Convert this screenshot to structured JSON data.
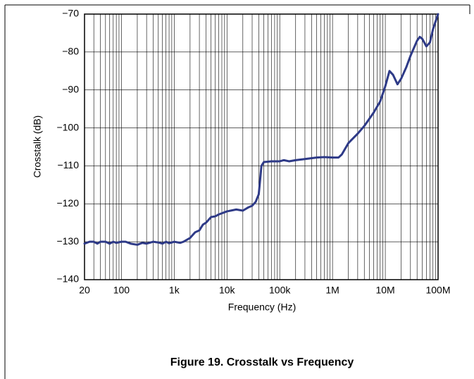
{
  "chart_data": {
    "type": "line",
    "title": "Figure 19. Crosstalk vs Frequency",
    "xlabel": "Frequency (Hz)",
    "ylabel": "Crosstalk (dB)",
    "xscale": "log",
    "grid": true,
    "xlim": [
      20,
      100000000
    ],
    "ylim": [
      -140,
      -70
    ],
    "xticks": [
      20,
      100,
      {
        "value": 1000,
        "label": "1k"
      },
      {
        "value": 10000,
        "label": "10k"
      },
      {
        "value": 100000,
        "label": "100k"
      },
      {
        "value": 1000000,
        "label": "1M"
      },
      {
        "value": 10000000,
        "label": "10M"
      },
      {
        "value": 100000000,
        "label": "100M"
      }
    ],
    "yticks": [
      {
        "value": -140,
        "label": "−140"
      },
      {
        "value": -130,
        "label": "−130"
      },
      {
        "value": -120,
        "label": "−120"
      },
      {
        "value": -110,
        "label": "−110"
      },
      {
        "value": -100,
        "label": "−100"
      },
      {
        "value": -90,
        "label": "−90"
      },
      {
        "value": -80,
        "label": "−80"
      },
      {
        "value": -70,
        "label": "−70"
      }
    ],
    "series": [
      {
        "color": "#2e3a87",
        "x": [
          20,
          25,
          30,
          35,
          40,
          50,
          60,
          70,
          80,
          100,
          120,
          150,
          200,
          250,
          300,
          400,
          500,
          600,
          700,
          800,
          1000,
          1300,
          1500,
          2000,
          2500,
          3000,
          3500,
          4000,
          5000,
          6000,
          7000,
          8000,
          10000,
          15000,
          20000,
          25000,
          30000,
          35000,
          40000,
          45000,
          50000,
          70000,
          100000,
          120000,
          150000,
          200000,
          300000,
          500000,
          700000,
          1000000,
          1300000,
          1500000,
          2000000,
          3000000,
          4000000,
          6000000,
          8000000,
          10000000,
          12000000,
          14000000,
          17000000,
          20000000,
          25000000,
          30000000,
          40000000,
          45000000,
          50000000,
          60000000,
          70000000,
          80000000,
          100000000
        ],
        "values": [
          -130.5,
          -130,
          -130,
          -130.5,
          -130,
          -130,
          -130.5,
          -130,
          -130.3,
          -130,
          -130,
          -130.5,
          -130.8,
          -130.3,
          -130.5,
          -130,
          -130.2,
          -130.5,
          -130,
          -130.4,
          -130,
          -130.3,
          -130,
          -129,
          -127.5,
          -127,
          -125.5,
          -125,
          -123.5,
          -123.3,
          -122.8,
          -122.5,
          -122,
          -121.5,
          -121.8,
          -121,
          -120.5,
          -119.5,
          -117.5,
          -110,
          -109,
          -108.8,
          -108.8,
          -108.5,
          -108.8,
          -108.5,
          -108.2,
          -107.8,
          -107.7,
          -107.8,
          -107.8,
          -107,
          -104,
          -101.5,
          -99.5,
          -96,
          -93,
          -89,
          -85,
          -86,
          -88.5,
          -87,
          -84,
          -81,
          -77,
          -76,
          -76.5,
          -78.5,
          -77.5,
          -74,
          -70
        ]
      }
    ]
  }
}
